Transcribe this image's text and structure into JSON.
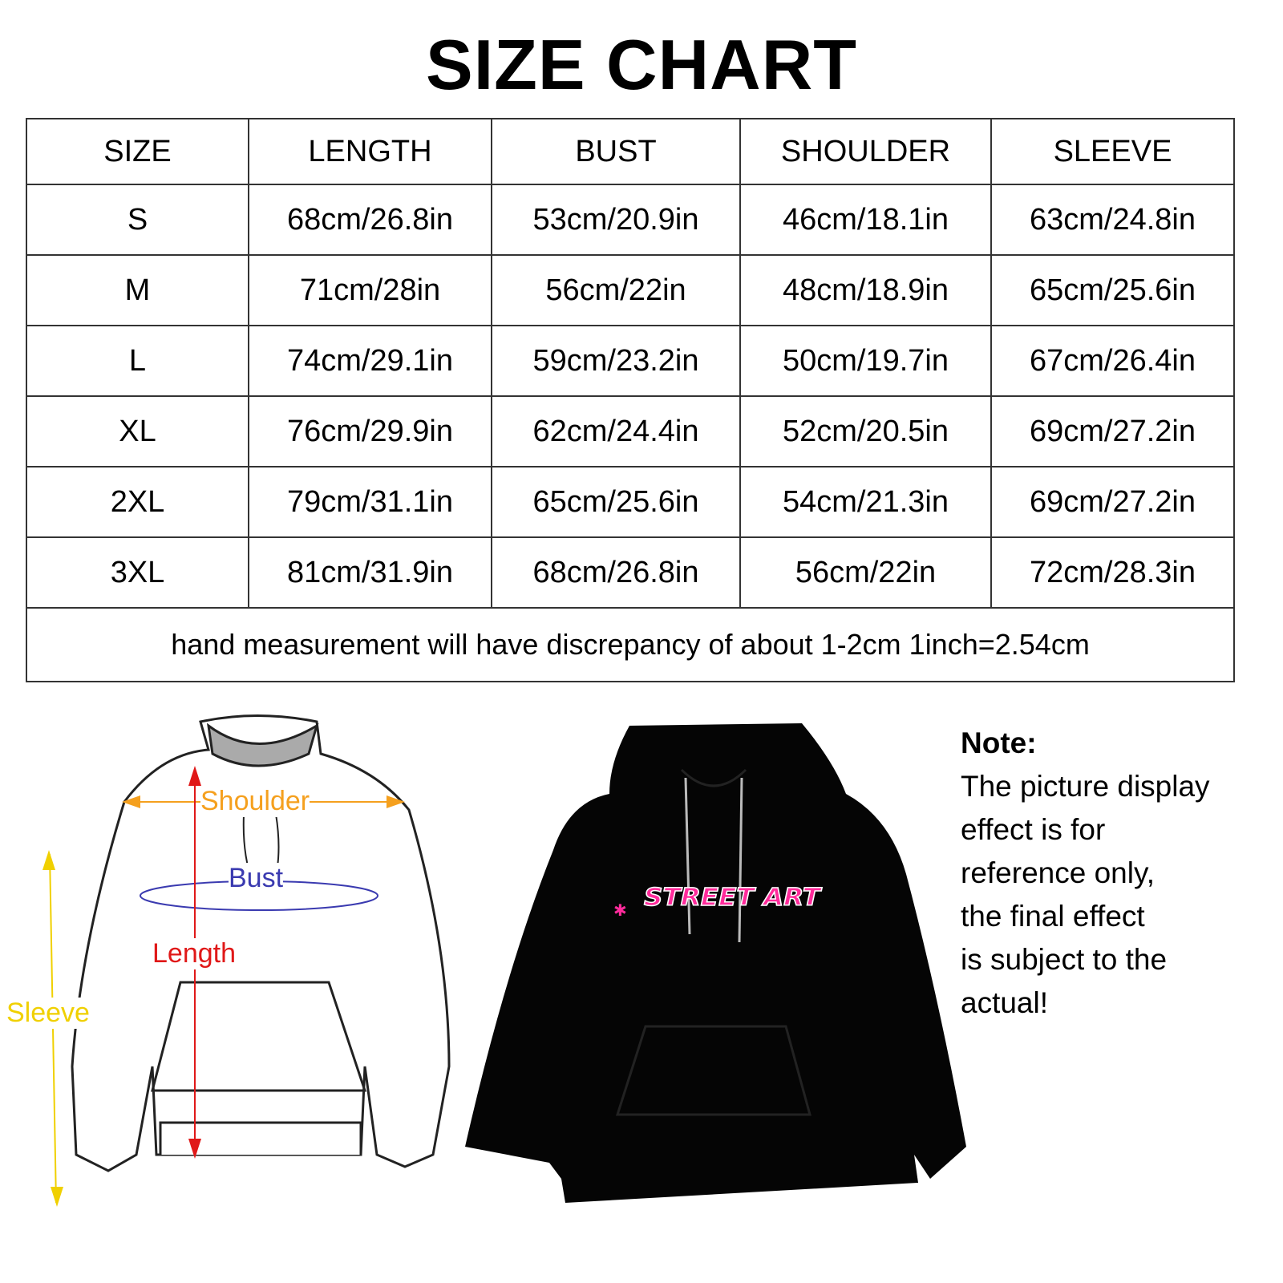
{
  "title": "SIZE CHART",
  "table": {
    "headers": [
      "SIZE",
      "LENGTH",
      "BUST",
      "SHOULDER",
      "SLEEVE"
    ],
    "rows": [
      [
        "S",
        "68cm/26.8in",
        "53cm/20.9in",
        "46cm/18.1in",
        "63cm/24.8in"
      ],
      [
        "M",
        "71cm/28in",
        "56cm/22in",
        "48cm/18.9in",
        "65cm/25.6in"
      ],
      [
        "L",
        "74cm/29.1in",
        "59cm/23.2in",
        "50cm/19.7in",
        "67cm/26.4in"
      ],
      [
        "XL",
        "76cm/29.9in",
        "62cm/24.4in",
        "52cm/20.5in",
        "69cm/27.2in"
      ],
      [
        "2XL",
        "79cm/31.1in",
        "65cm/25.6in",
        "54cm/21.3in",
        "69cm/27.2in"
      ],
      [
        "3XL",
        "81cm/31.9in",
        "68cm/26.8in",
        "56cm/22in",
        "72cm/28.3in"
      ]
    ],
    "footnote": "hand measurement will have discrepancy of about 1-2cm 1inch=2.54cm"
  },
  "diagram": {
    "shoulder": "Shoulder",
    "bust": "Bust",
    "length": "Length",
    "sleeve": "Sleeve",
    "colors": {
      "shoulder": "#f5a01e",
      "bust": "#3a3ab0",
      "length": "#e01818",
      "sleeve": "#f0d000"
    }
  },
  "product": {
    "print_logo_text": "STREET ART",
    "color": "#050505"
  },
  "note": {
    "title": "Note:",
    "lines": [
      "The picture display",
      "effect is for",
      "reference only,",
      "the final effect",
      "is subject to the",
      "actual!"
    ]
  }
}
